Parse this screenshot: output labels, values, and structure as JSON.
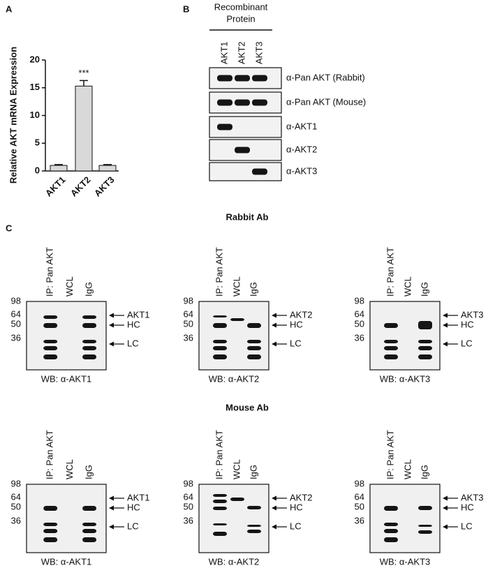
{
  "chart_data": {
    "type": "bar",
    "ylabel": "Relative AKT  mRNA Expression",
    "categories": [
      "AKT1",
      "AKT2",
      "AKT3"
    ],
    "values": [
      1.0,
      15.3,
      1.0
    ],
    "errors": [
      0.15,
      1.0,
      0.15
    ],
    "color": "#d9d9d9",
    "ylim": [
      0,
      20
    ],
    "yticks": [
      0,
      5,
      10,
      15,
      20
    ],
    "annotation": "***"
  },
  "panels": {
    "a_label": "A",
    "b_label": "B",
    "c_label": "C",
    "b": {
      "header": [
        "Recombinant",
        "Protein"
      ],
      "lanes": [
        "AKT1",
        "AKT2",
        "AKT3"
      ],
      "rows": [
        "α-Pan AKT (Rabbit)",
        "α-Pan AKT (Mouse)",
        "α-AKT1",
        "α-AKT2",
        "α-AKT3"
      ]
    },
    "c": {
      "groups": [
        {
          "title": "Rabbit Ab",
          "blots": [
            {
              "lanes": [
                "IP: Pan AKT",
                "WCL",
                "IgG"
              ],
              "markers": [
                "98",
                "64",
                "50",
                "36"
              ],
              "arrows": [
                "AKT1",
                "HC",
                "LC"
              ],
              "caption": "WB: α-AKT1"
            },
            {
              "lanes": [
                "IP: Pan AKT",
                "WCL",
                "IgG"
              ],
              "markers": [
                "98",
                "64",
                "50",
                "36"
              ],
              "arrows": [
                "AKT2",
                "HC",
                "LC"
              ],
              "caption": "WB: α-AKT2"
            },
            {
              "lanes": [
                "IP: Pan AKT",
                "WCL",
                "IgG"
              ],
              "markers": [
                "98",
                "64",
                "50",
                "36"
              ],
              "arrows": [
                "AKT3",
                "HC",
                "LC"
              ],
              "caption": "WB: α-AKT3"
            }
          ]
        },
        {
          "title": "Mouse Ab",
          "blots": [
            {
              "lanes": [
                "IP: Pan AKT",
                "WCL",
                "IgG"
              ],
              "markers": [
                "98",
                "64",
                "50",
                "36"
              ],
              "arrows": [
                "AKT1",
                "HC",
                "LC"
              ],
              "caption": "WB: α-AKT1"
            },
            {
              "lanes": [
                "IP: Pan AKT",
                "WCL",
                "IgG"
              ],
              "markers": [
                "98",
                "64",
                "50",
                "36"
              ],
              "arrows": [
                "AKT2",
                "HC",
                "LC"
              ],
              "caption": "WB: α-AKT2"
            },
            {
              "lanes": [
                "IP: Pan AKT",
                "WCL",
                "IgG"
              ],
              "markers": [
                "98",
                "64",
                "50",
                "36"
              ],
              "arrows": [
                "AKT3",
                "HC",
                "LC"
              ],
              "caption": "WB: α-AKT3"
            }
          ]
        }
      ]
    }
  }
}
